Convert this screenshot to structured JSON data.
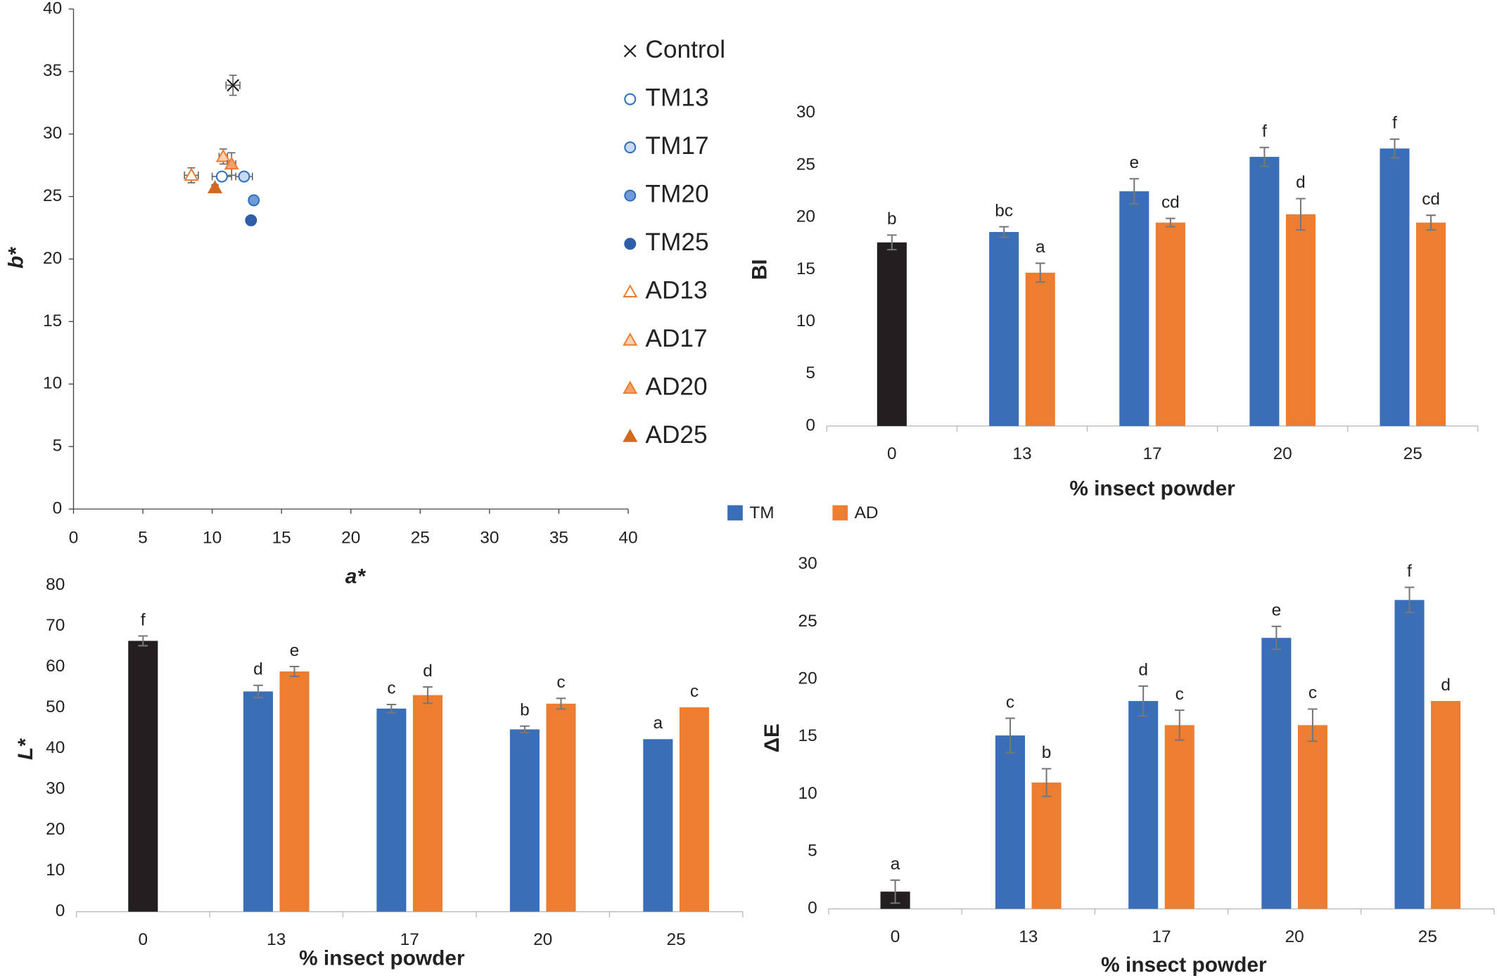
{
  "chart_data": [
    {
      "type": "scatter",
      "xlabel": "a*",
      "ylabel": "b*",
      "xlim": [
        0,
        40
      ],
      "ylim": [
        0,
        40
      ],
      "xticks": [
        0,
        5,
        10,
        15,
        20,
        25,
        30,
        35,
        40
      ],
      "yticks": [
        0,
        5,
        10,
        15,
        20,
        25,
        30,
        35,
        40
      ],
      "series": [
        {
          "name": "Control",
          "marker": "x",
          "color": "#222222",
          "fill": "none",
          "x": [
            11.5
          ],
          "y": [
            33.9
          ],
          "xerr": [
            0.5
          ],
          "yerr": [
            0.8
          ]
        },
        {
          "name": "TM13",
          "marker": "circle",
          "color": "#2e6fc0",
          "fill": "#ffffff",
          "x": [
            10.7
          ],
          "y": [
            26.6
          ],
          "xerr": [
            0.7
          ],
          "yerr": [
            0.3
          ]
        },
        {
          "name": "TM17",
          "marker": "circle",
          "color": "#2e6fc0",
          "fill": "#c9d9f0",
          "x": [
            12.3
          ],
          "y": [
            26.6
          ],
          "xerr": [
            0.6
          ],
          "yerr": [
            0.3
          ]
        },
        {
          "name": "TM20",
          "marker": "circle",
          "color": "#2e6fc0",
          "fill": "#6f9bd6",
          "x": [
            13.0
          ],
          "y": [
            24.7
          ],
          "xerr": [
            0.2
          ],
          "yerr": [
            0.2
          ]
        },
        {
          "name": "TM25",
          "marker": "circle",
          "color": "#2e5ea8",
          "fill": "#2e5ea8",
          "x": [
            12.8
          ],
          "y": [
            23.1
          ],
          "xerr": [
            0.2
          ],
          "yerr": [
            0.2
          ]
        },
        {
          "name": "AD13",
          "marker": "triangle",
          "color": "#ed7d31",
          "fill": "#ffffff",
          "x": [
            8.5
          ],
          "y": [
            26.7
          ],
          "xerr": [
            0.5
          ],
          "yerr": [
            0.6
          ]
        },
        {
          "name": "AD17",
          "marker": "triangle",
          "color": "#ed7d31",
          "fill": "#fbd4b8",
          "x": [
            10.8
          ],
          "y": [
            28.2
          ],
          "xerr": [
            0.3
          ],
          "yerr": [
            0.6
          ]
        },
        {
          "name": "AD20",
          "marker": "triangle",
          "color": "#ed7d31",
          "fill": "#f4a26c",
          "x": [
            11.4
          ],
          "y": [
            27.6
          ],
          "xerr": [
            0.3
          ],
          "yerr": [
            0.9
          ]
        },
        {
          "name": "AD25",
          "marker": "triangle",
          "color": "#d2691e",
          "fill": "#d2691e",
          "x": [
            10.2
          ],
          "y": [
            25.7
          ],
          "xerr": [
            0.2
          ],
          "yerr": [
            0.2
          ]
        }
      ]
    },
    {
      "type": "bar",
      "xlabel": "% insect powder",
      "ylabel": "BI",
      "ylim": [
        0,
        30
      ],
      "yticks": [
        0,
        5,
        10,
        15,
        20,
        25,
        30
      ],
      "categories": [
        "0",
        "13",
        "17",
        "20",
        "25"
      ],
      "series": [
        {
          "color": "#231f20",
          "values": [
            17.6,
            null,
            null,
            null,
            null
          ],
          "errors": [
            0.7,
            null,
            null,
            null,
            null
          ],
          "annotations": [
            "b",
            null,
            null,
            null,
            null
          ]
        },
        {
          "name": "TM",
          "color": "#3a6fb8",
          "values": [
            null,
            18.6,
            22.5,
            25.8,
            26.6
          ],
          "errors": [
            null,
            0.5,
            1.2,
            0.9,
            0.9
          ],
          "annotations": [
            null,
            "bc",
            "e",
            "f",
            "f"
          ]
        },
        {
          "name": "AD",
          "color": "#ed7d31",
          "values": [
            null,
            14.7,
            19.5,
            20.3,
            19.5
          ],
          "errors": [
            null,
            0.9,
            0.4,
            1.5,
            0.7
          ],
          "annotations": [
            null,
            "a",
            "cd",
            "d",
            "cd"
          ]
        }
      ]
    },
    {
      "type": "bar",
      "xlabel": "% insect powder",
      "ylabel": "L*",
      "ylim": [
        0,
        80
      ],
      "yticks": [
        0,
        10,
        20,
        30,
        40,
        50,
        60,
        70,
        80
      ],
      "categories": [
        "0",
        "13",
        "17",
        "20",
        "25"
      ],
      "series": [
        {
          "color": "#231f20",
          "values": [
            66.4,
            null,
            null,
            null,
            null
          ],
          "errors": [
            1.2,
            null,
            null,
            null,
            null
          ],
          "annotations": [
            "f",
            null,
            null,
            null,
            null
          ]
        },
        {
          "name": "TM",
          "color": "#3a6fb8",
          "values": [
            null,
            54.0,
            49.8,
            44.7,
            42.3
          ],
          "errors": [
            null,
            1.5,
            1.0,
            0.8,
            0
          ],
          "annotations": [
            null,
            "d",
            "c",
            "b",
            "a"
          ]
        },
        {
          "name": "AD",
          "color": "#ed7d31",
          "values": [
            null,
            58.9,
            53.1,
            51.0,
            50.1
          ],
          "errors": [
            null,
            1.2,
            2.0,
            1.3,
            0
          ],
          "annotations": [
            null,
            "e",
            "d",
            "c",
            "c"
          ]
        }
      ]
    },
    {
      "type": "bar",
      "xlabel": "% insect powder",
      "ylabel": "ΔE",
      "ylim": [
        0,
        30
      ],
      "yticks": [
        0,
        5,
        10,
        15,
        20,
        25,
        30
      ],
      "categories": [
        "0",
        "13",
        "17",
        "20",
        "25"
      ],
      "series": [
        {
          "color": "#231f20",
          "values": [
            1.5,
            null,
            null,
            null,
            null
          ],
          "errors": [
            1.0,
            null,
            null,
            null,
            null
          ],
          "annotations": [
            "a",
            null,
            null,
            null,
            null
          ]
        },
        {
          "name": "TM",
          "color": "#3a6fb8",
          "values": [
            null,
            15.1,
            18.1,
            23.6,
            26.9
          ],
          "errors": [
            null,
            1.5,
            1.3,
            1.0,
            1.1
          ],
          "annotations": [
            null,
            "c",
            "d",
            "e",
            "f"
          ]
        },
        {
          "name": "AD",
          "color": "#ed7d31",
          "values": [
            null,
            11.0,
            16.0,
            16.0,
            18.1
          ],
          "errors": [
            null,
            1.2,
            1.3,
            1.4,
            0
          ],
          "annotations": [
            null,
            "b",
            "c",
            "c",
            "d"
          ]
        }
      ]
    }
  ]
}
